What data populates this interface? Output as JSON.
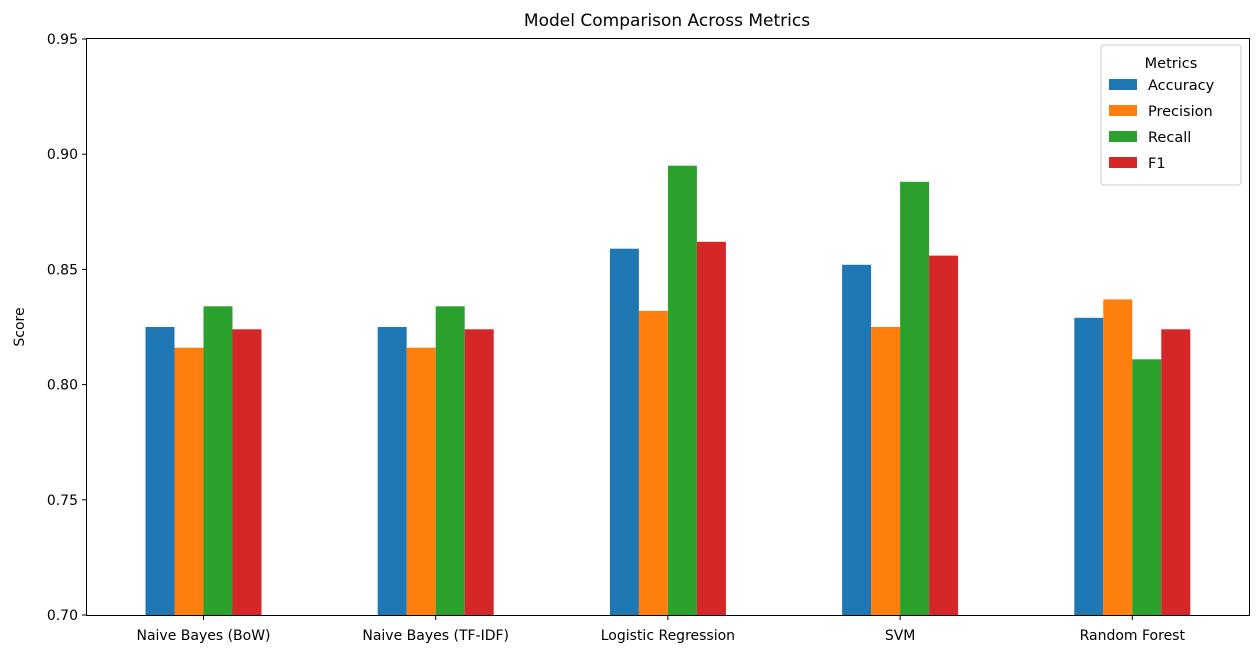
{
  "chart_data": {
    "type": "bar",
    "title": "Model Comparison Across Metrics",
    "xlabel": "",
    "ylabel": "Score",
    "ylim": [
      0.7,
      0.95
    ],
    "yticks": [
      "0.70",
      "0.75",
      "0.80",
      "0.85",
      "0.90",
      "0.95"
    ],
    "grid": false,
    "categories": [
      "Naive Bayes (BoW)",
      "Naive Bayes (TF-IDF)",
      "Logistic Regression",
      "SVM",
      "Random Forest"
    ],
    "legend": {
      "title": "Metrics",
      "placement": "upper right"
    },
    "series": [
      {
        "name": "Accuracy",
        "color": "#1f77b4",
        "values": [
          0.825,
          0.825,
          0.859,
          0.852,
          0.829
        ]
      },
      {
        "name": "Precision",
        "color": "#ff7f0e",
        "values": [
          0.816,
          0.816,
          0.832,
          0.825,
          0.837
        ]
      },
      {
        "name": "Recall",
        "color": "#2ca02c",
        "values": [
          0.834,
          0.834,
          0.895,
          0.888,
          0.811
        ]
      },
      {
        "name": "F1",
        "color": "#d62728",
        "values": [
          0.824,
          0.824,
          0.862,
          0.856,
          0.824
        ]
      }
    ]
  }
}
